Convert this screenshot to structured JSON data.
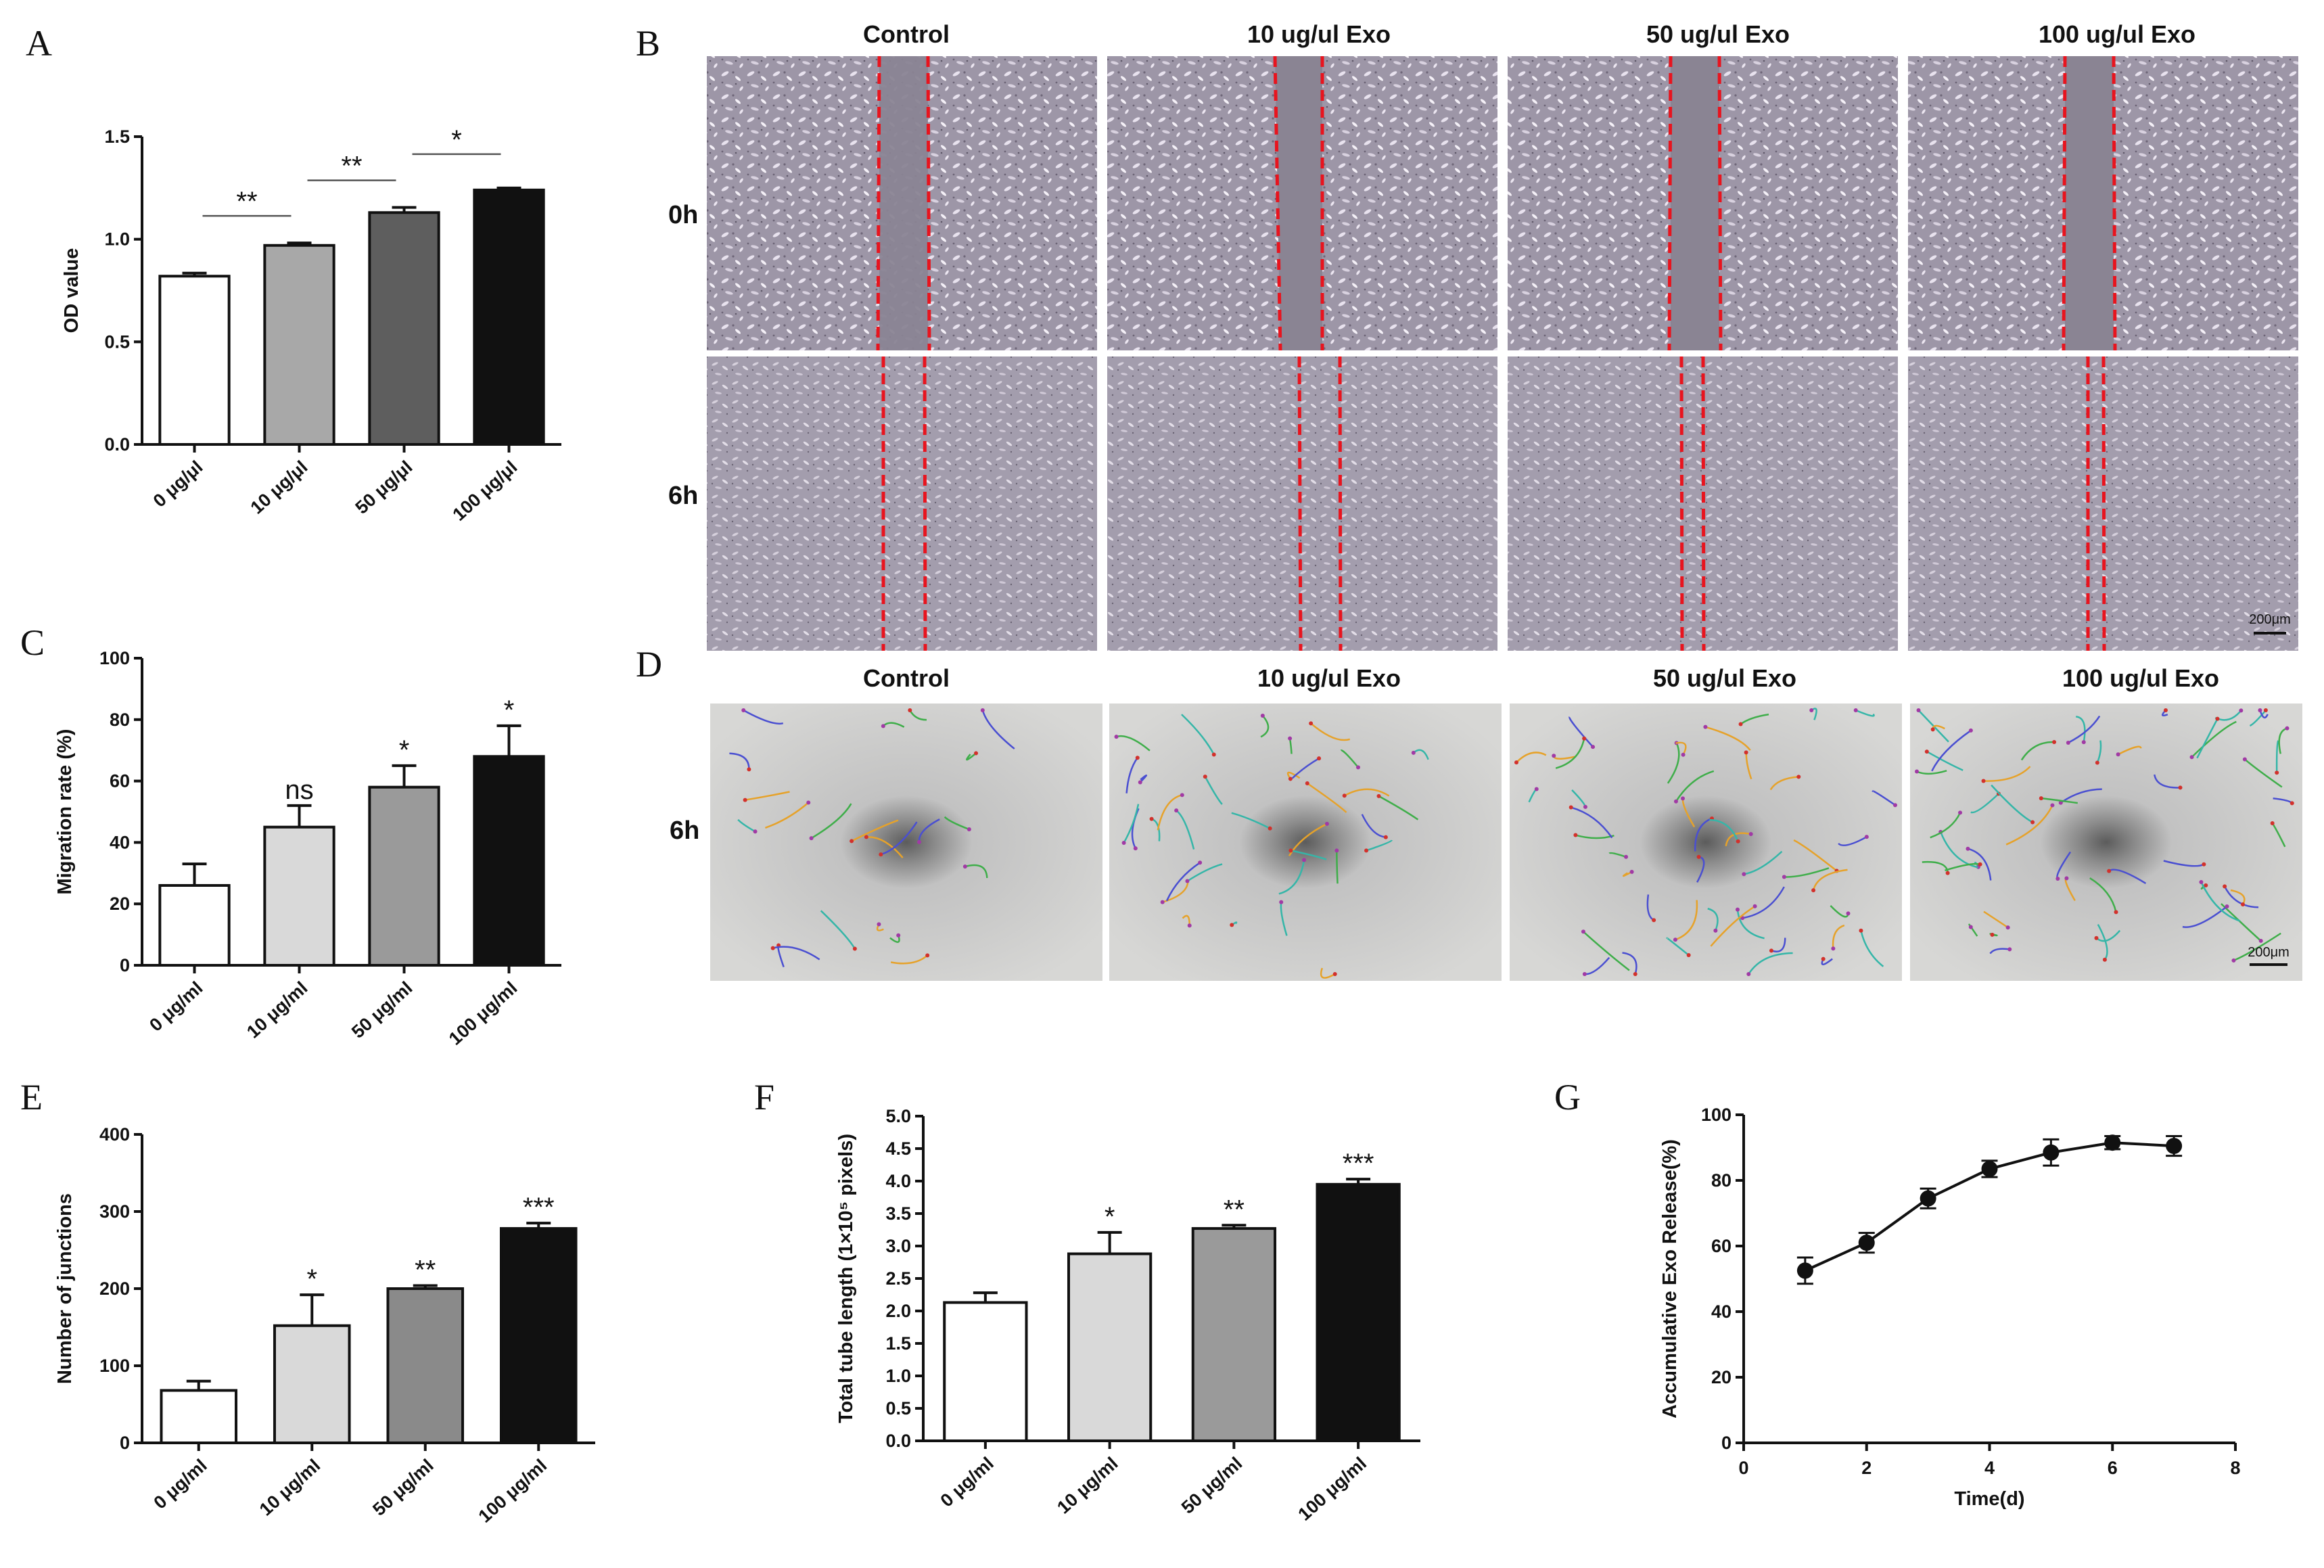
{
  "panel_letters": [
    "A",
    "B",
    "C",
    "D",
    "E",
    "F",
    "G"
  ],
  "micrographs": {
    "B": {
      "columns": [
        "Control",
        "10 ug/ul Exo",
        "50 ug/ul Exo",
        "100 ug/ul Exo"
      ],
      "rows": [
        "0h",
        "6h"
      ],
      "scale_bar": "200μm"
    },
    "D": {
      "columns": [
        "Control",
        "10 ug/ul Exo",
        "50 ug/ul Exo",
        "100 ug/ul Exo"
      ],
      "rows": [
        "6h"
      ],
      "scale_bar": "200μm"
    }
  },
  "colors": {
    "bar_white": "#ffffff",
    "bar_light": "#d9d9d9",
    "bar_mid": "#9a9a9a",
    "bar_dark": "#5e5e5e",
    "bar_black": "#111111",
    "wound_line": "#e8141e",
    "cell_field": "#9c95a6"
  },
  "chart_data": [
    {
      "panel": "A",
      "type": "bar",
      "categories": [
        "0 μg/μl",
        "10 μg/μl",
        "50 μg/μl",
        "100 μg/μl"
      ],
      "values": [
        0.82,
        0.97,
        1.13,
        1.24
      ],
      "errors": [
        0.015,
        0.012,
        0.025,
        0.01
      ],
      "ylabel": "OD value",
      "ylim": [
        0,
        1.5
      ],
      "yticks": [
        "0.0",
        "0.5",
        "1.0",
        "1.5"
      ],
      "comparisons": [
        {
          "from": 0,
          "to": 1,
          "label": "**"
        },
        {
          "from": 1,
          "to": 2,
          "label": "**"
        },
        {
          "from": 2,
          "to": 3,
          "label": "*"
        }
      ]
    },
    {
      "panel": "C",
      "type": "bar",
      "categories": [
        "0 μg/ml",
        "10 μg/ml",
        "50 μg/ml",
        "100 μg/ml"
      ],
      "values": [
        26,
        45,
        58,
        68
      ],
      "errors": [
        7,
        7,
        7,
        10
      ],
      "annotations": [
        "",
        "ns",
        "*",
        "*"
      ],
      "ylabel": "Migration rate (%)",
      "ylim": [
        0,
        100
      ],
      "yticks": [
        "0",
        "20",
        "40",
        "60",
        "80",
        "100"
      ]
    },
    {
      "panel": "E",
      "type": "bar",
      "categories": [
        "0 μg/ml",
        "10 μg/ml",
        "50 μg/ml",
        "100 μg/ml"
      ],
      "values": [
        68,
        152,
        200,
        278
      ],
      "errors": [
        12,
        40,
        4,
        7
      ],
      "annotations": [
        "",
        "*",
        "**",
        "***"
      ],
      "ylabel": "Number of  junctions",
      "ylim": [
        0,
        400
      ],
      "yticks": [
        "0",
        "100",
        "200",
        "300",
        "400"
      ]
    },
    {
      "panel": "F",
      "type": "bar",
      "categories": [
        "0 μg/ml",
        "10 μg/ml",
        "50 μg/ml",
        "100 μg/ml"
      ],
      "values": [
        2.13,
        2.88,
        3.27,
        3.95
      ],
      "errors": [
        0.15,
        0.33,
        0.05,
        0.08
      ],
      "annotations": [
        "",
        "*",
        "**",
        "***"
      ],
      "ylabel": "Total tube length (1×10⁵ pixels)",
      "ylim": [
        0,
        5
      ],
      "yticks": [
        "0.0",
        "0.5",
        "1.0",
        "1.5",
        "2.0",
        "2.5",
        "3.0",
        "3.5",
        "4.0",
        "4.5",
        "5.0"
      ]
    },
    {
      "panel": "G",
      "type": "line",
      "x": [
        1,
        2,
        3,
        4,
        5,
        6,
        7
      ],
      "values": [
        52.5,
        61,
        74.5,
        83.5,
        88.5,
        91.5,
        90.5
      ],
      "errors": [
        4,
        3,
        3,
        2.5,
        4,
        2,
        3
      ],
      "ylabel": "Accumulative Exo Release(%)",
      "xlabel": "Time(d)",
      "ylim": [
        0,
        100
      ],
      "xlim": [
        0,
        8
      ],
      "yticks": [
        "0",
        "20",
        "40",
        "60",
        "80",
        "100"
      ],
      "xticks": [
        "0",
        "2",
        "4",
        "6",
        "8"
      ]
    }
  ]
}
